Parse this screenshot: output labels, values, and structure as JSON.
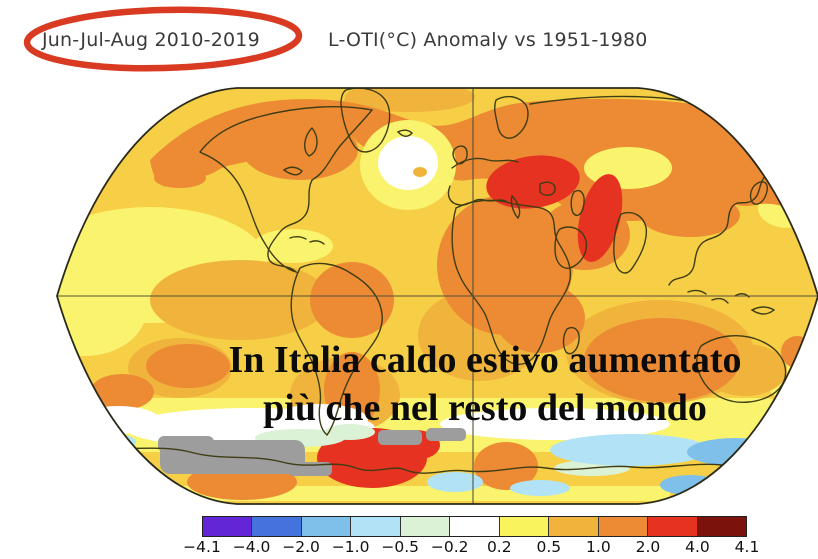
{
  "header": {
    "period_label": "Jun-Jul-Aug 2010-2019",
    "dataset_label": "L-OTI(°C) Anomaly vs 1951-1980"
  },
  "caption": {
    "line1": "In Italia  caldo estivo aumentato",
    "line2": "più che nel resto del mondo"
  },
  "palette": {
    "highlight_red": "#d93b22",
    "coastline": "#3f3d14",
    "grid": "#55513a",
    "outline": "#2a2a1a",
    "ocean_base": "#f6cf46",
    "pale_yellow": "#faf36d",
    "amber": "#f0b43c",
    "orange": "#ec8b33",
    "red": "#e63220",
    "dark_red": "#7c120c",
    "white_zone": "#ffffff",
    "pale_green": "#dcf2d6",
    "light_cyan": "#b2e2f5",
    "mid_blue": "#7fc0ea",
    "blue": "#4473de",
    "purple": "#6326d6",
    "gray_nodata": "#9d9d9d"
  },
  "chart_data": {
    "type": "heatmap",
    "title": "L-OTI(°C) Anomaly vs 1951-1980",
    "subtitle": "Jun-Jul-Aug 2010-2019",
    "projection": "Robinson world map",
    "units": "°C",
    "value_range": [
      -4.1,
      4.1
    ],
    "colorbar": {
      "orientation": "horizontal",
      "position": "bottom",
      "tick_labels": [
        "−4.1",
        "−4.0",
        "−2.0",
        "−1.0",
        "−0.5",
        "−0.2",
        "0.2",
        "0.5",
        "1.0",
        "2.0",
        "4.0",
        "4.1"
      ],
      "segment_colors": [
        "#6326d6",
        "#4473de",
        "#7fc0ea",
        "#b2e2f5",
        "#dcf2d6",
        "#ffffff",
        "#f9f35e",
        "#f0b43c",
        "#ec8b33",
        "#e63220",
        "#7c120c"
      ]
    },
    "annotations": [
      "Red ellipse hand-drawn around the period label Jun-Jul-Aug 2010-2019",
      "Overlaid caption: In Italia caldo estivo aumentato più che nel resto del mondo"
    ],
    "notable_features": [
      "Strong red warm anomaly (2–4 °C) over Italy, central-eastern Europe and the Black Sea",
      "Red warm anomaly stripe over the Caspian / Iran region",
      "Orange 1–2 °C anomalies across the Arctic, Canada, Siberia, north Africa and the Middle East",
      "White near-zero cold blob in the North Atlantic south of Greenland",
      "Cool pale-blue anomalies along the Antarctic coast",
      "Gray no-data patches in the Southern Ocean",
      "Red warm anomaly near the Antarctic Peninsula"
    ]
  }
}
